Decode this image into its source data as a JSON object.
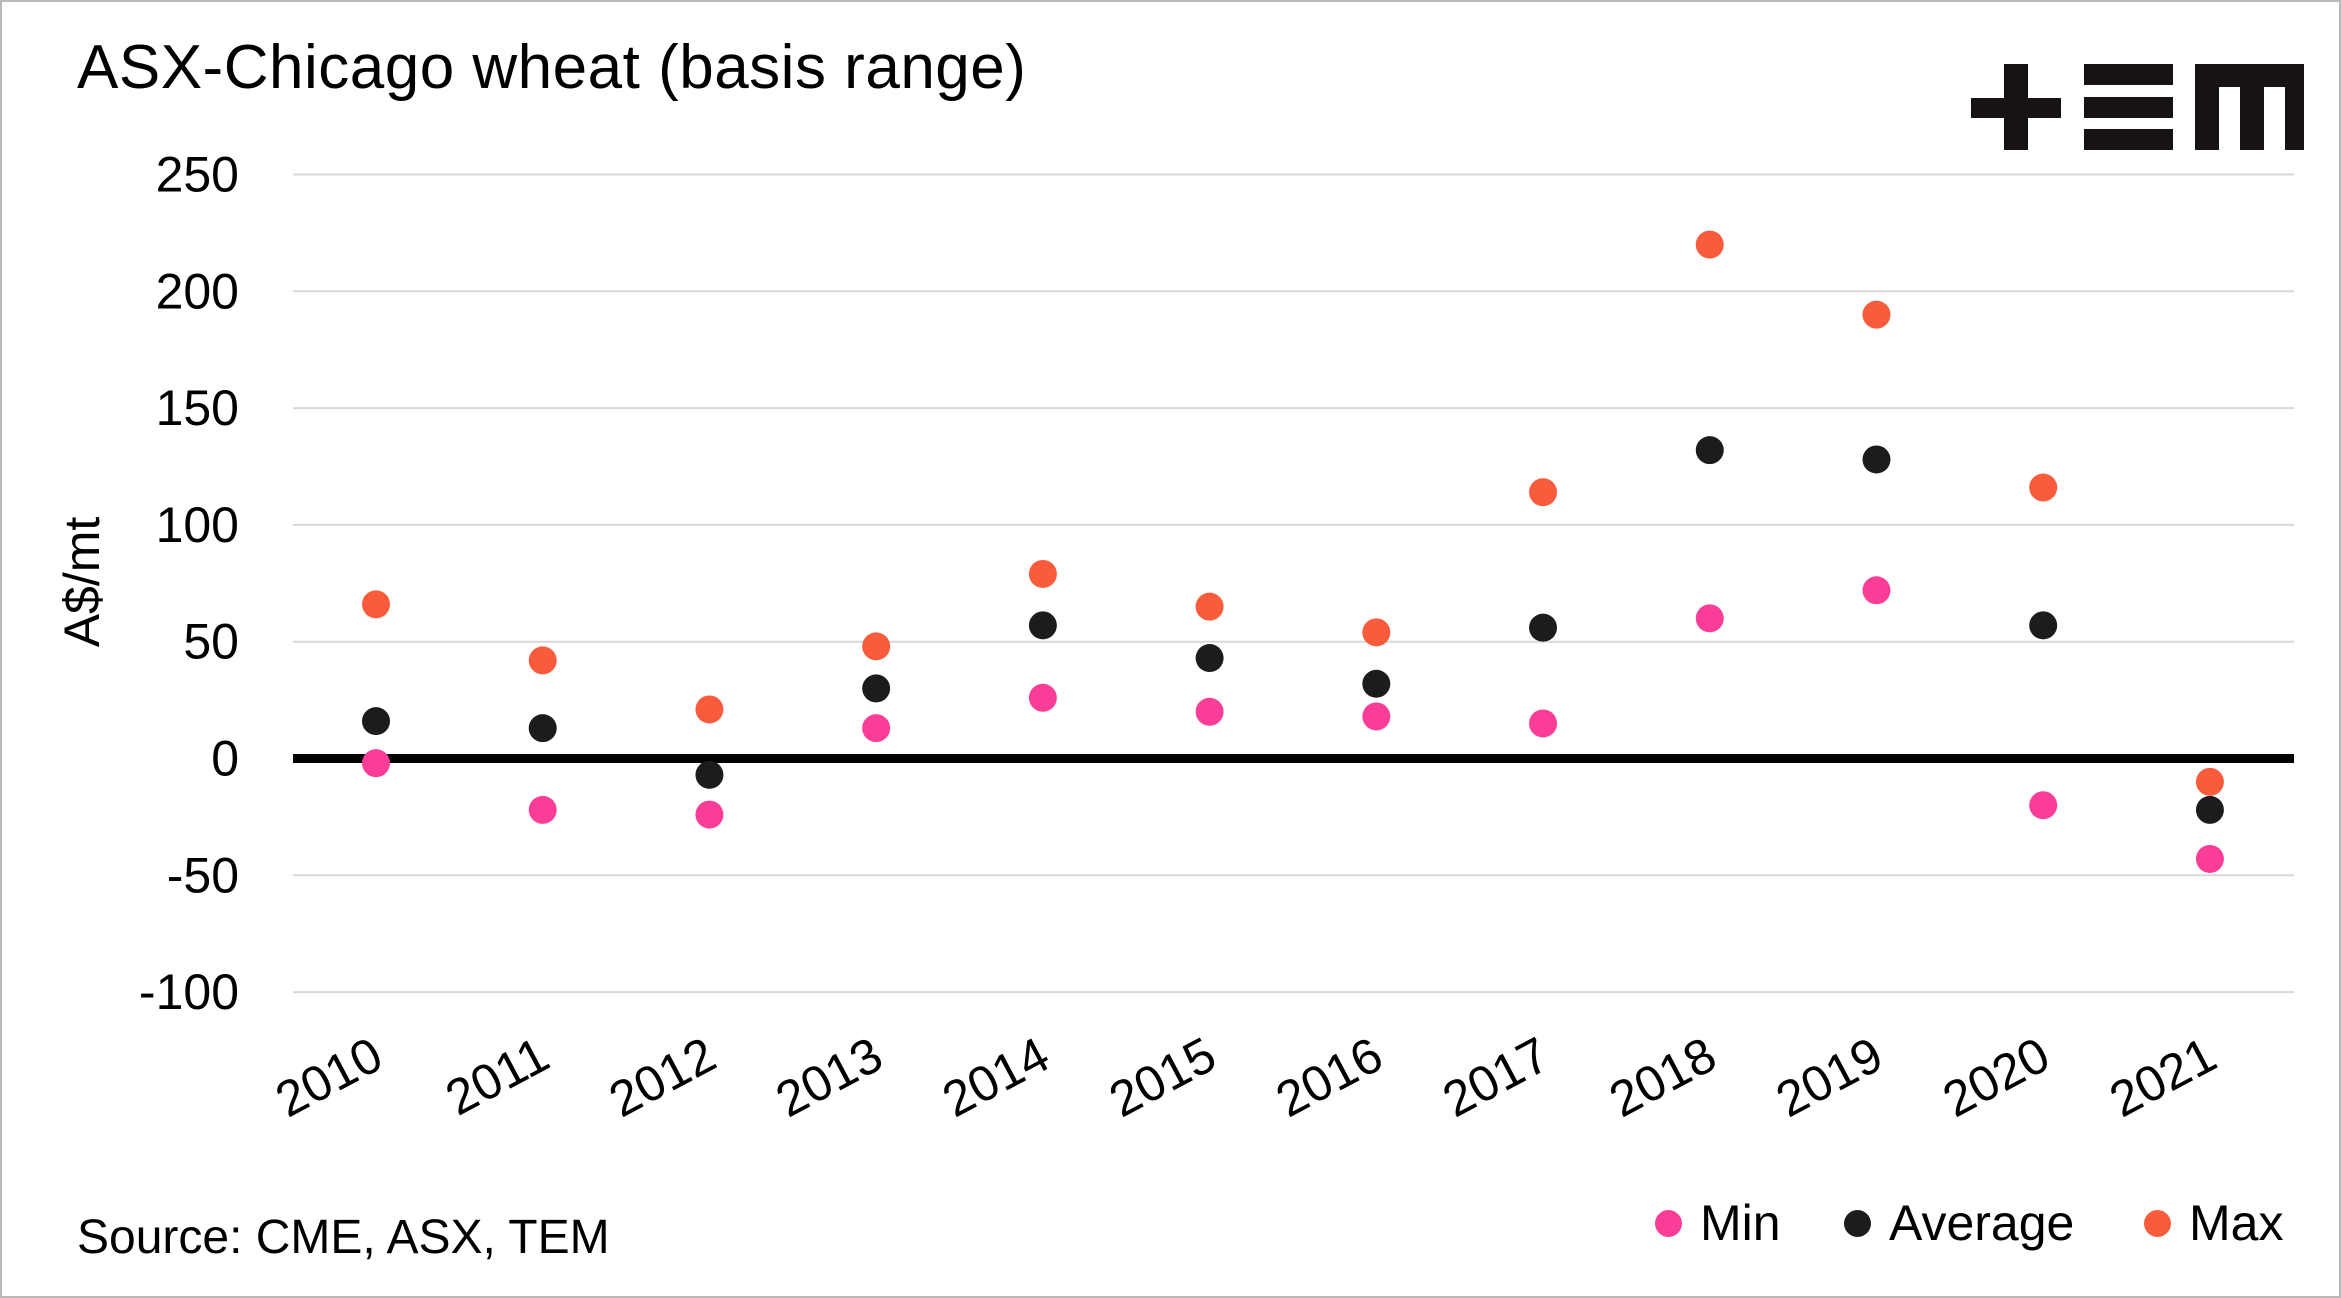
{
  "title": "ASX-Chicago wheat (basis range)",
  "source_note": "Source: CME, ASX, TEM",
  "logo": {
    "label": "TEM"
  },
  "colors": {
    "min": "#FA3E97",
    "average": "#1D1B1B",
    "max": "#F85C3C",
    "gridline": "#D9D9D9",
    "zero_line": "#000000"
  },
  "chart_data": {
    "type": "scatter",
    "title": "ASX-Chicago wheat (basis range)",
    "xlabel": "",
    "ylabel": "A$/mt",
    "ylim": [
      -100,
      250
    ],
    "y_ticks": [
      250,
      200,
      150,
      100,
      50,
      0,
      -50,
      -100
    ],
    "grid": true,
    "zero_line": true,
    "legend_position": "bottom-right",
    "categories": [
      "2010",
      "2011",
      "2012",
      "2013",
      "2014",
      "2015",
      "2016",
      "2017",
      "2018",
      "2019",
      "2020",
      "2021"
    ],
    "series": [
      {
        "name": "Min",
        "color": "#FA3E97",
        "values": [
          -2,
          -22,
          -24,
          13,
          26,
          20,
          18,
          15,
          60,
          72,
          -20,
          -43
        ]
      },
      {
        "name": "Average",
        "color": "#1D1B1B",
        "values": [
          16,
          13,
          -7,
          30,
          57,
          43,
          32,
          56,
          132,
          128,
          57,
          -22
        ]
      },
      {
        "name": "Max",
        "color": "#F85C3C",
        "values": [
          66,
          42,
          21,
          48,
          79,
          65,
          54,
          114,
          220,
          190,
          116,
          -10
        ]
      }
    ]
  }
}
